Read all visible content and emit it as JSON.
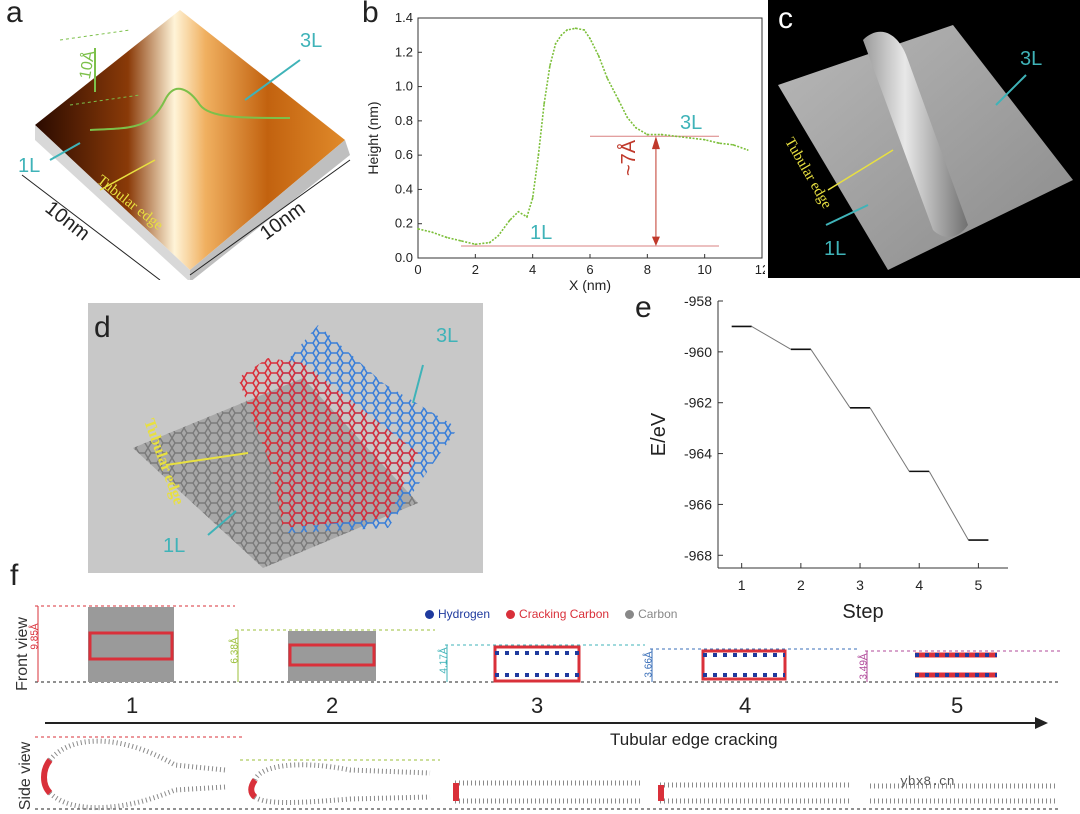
{
  "panels": {
    "a": {
      "letter": "a",
      "label_3L": "3L",
      "label_1L": "1L",
      "label_10A": "10Å",
      "label_tubular": "Tubular edge",
      "label_10nm_left": "10nm",
      "label_10nm_right": "10nm"
    },
    "b": {
      "letter": "b",
      "label_3L": "3L",
      "label_1L": "1L",
      "label_7A": "~7Å"
    },
    "c": {
      "letter": "c",
      "label_3L": "3L",
      "label_1L": "1L",
      "label_tubular": "Tubular edge"
    },
    "d": {
      "letter": "d",
      "label_3L": "3L",
      "label_1L": "1L",
      "label_tubular": "Tubular edge"
    },
    "e": {
      "letter": "e"
    },
    "f": {
      "letter": "f",
      "front_view": "Front view",
      "side_view": "Side view",
      "arrow_label": "Tubular edge cracking",
      "legend": [
        {
          "label": "Hydrogen",
          "color": "#1f3a9e"
        },
        {
          "label": "Cracking Carbon",
          "color": "#d9303a"
        },
        {
          "label": "Carbon",
          "color": "#888888"
        }
      ],
      "steps": [
        "1",
        "2",
        "3",
        "4",
        "5"
      ],
      "distances": [
        "9.85Å",
        "6.38Å",
        "4.17Å",
        "3.66Å",
        "3.49Å"
      ],
      "distance_colors": [
        "#d9303a",
        "#9bbf3a",
        "#3fb3b8",
        "#3a6fb8",
        "#b04a9a"
      ]
    }
  },
  "watermark": "ybx8.cn",
  "chart_data": [
    {
      "type": "line",
      "panel": "b",
      "xlabel": "X (nm)",
      "ylabel": "Height (nm)",
      "xlim": [
        0,
        12
      ],
      "ylim": [
        0,
        1.4
      ],
      "xticks": [
        "0",
        "2",
        "4",
        "6",
        "8",
        "10",
        "12"
      ],
      "yticks": [
        "0.0",
        "0.2",
        "0.4",
        "0.6",
        "0.8",
        "1.0",
        "1.2",
        "1.4"
      ],
      "series": [
        {
          "color": "#7cbf3a",
          "x": [
            0,
            0.5,
            1.0,
            1.5,
            2.0,
            2.5,
            2.8,
            3.2,
            3.5,
            3.8,
            4.0,
            4.2,
            4.4,
            4.6,
            4.8,
            5.0,
            5.2,
            5.5,
            5.8,
            6.0,
            6.3,
            6.6,
            7.0,
            7.3,
            7.6,
            8.0,
            8.5,
            9.0,
            9.5,
            10.0,
            10.5,
            11.0,
            11.5
          ],
          "y": [
            0.17,
            0.15,
            0.12,
            0.1,
            0.08,
            0.09,
            0.13,
            0.22,
            0.27,
            0.24,
            0.35,
            0.6,
            0.9,
            1.12,
            1.25,
            1.3,
            1.33,
            1.34,
            1.33,
            1.28,
            1.18,
            1.05,
            0.92,
            0.82,
            0.76,
            0.72,
            0.72,
            0.71,
            0.7,
            0.69,
            0.67,
            0.66,
            0.63
          ]
        }
      ]
    },
    {
      "type": "line",
      "panel": "e",
      "xlabel": "Step",
      "ylabel": "E/eV",
      "xlim": [
        0.6,
        5.5
      ],
      "ylim": [
        -968.5,
        -958
      ],
      "xticks": [
        "1",
        "2",
        "3",
        "4",
        "5"
      ],
      "yticks": [
        "-958",
        "-960",
        "-962",
        "-964",
        "-966",
        "-968"
      ],
      "series": [
        {
          "color": "#444444",
          "x": [
            1,
            2,
            3,
            4,
            5
          ],
          "y": [
            -959.0,
            -959.9,
            -962.2,
            -964.7,
            -967.4
          ]
        }
      ]
    }
  ]
}
